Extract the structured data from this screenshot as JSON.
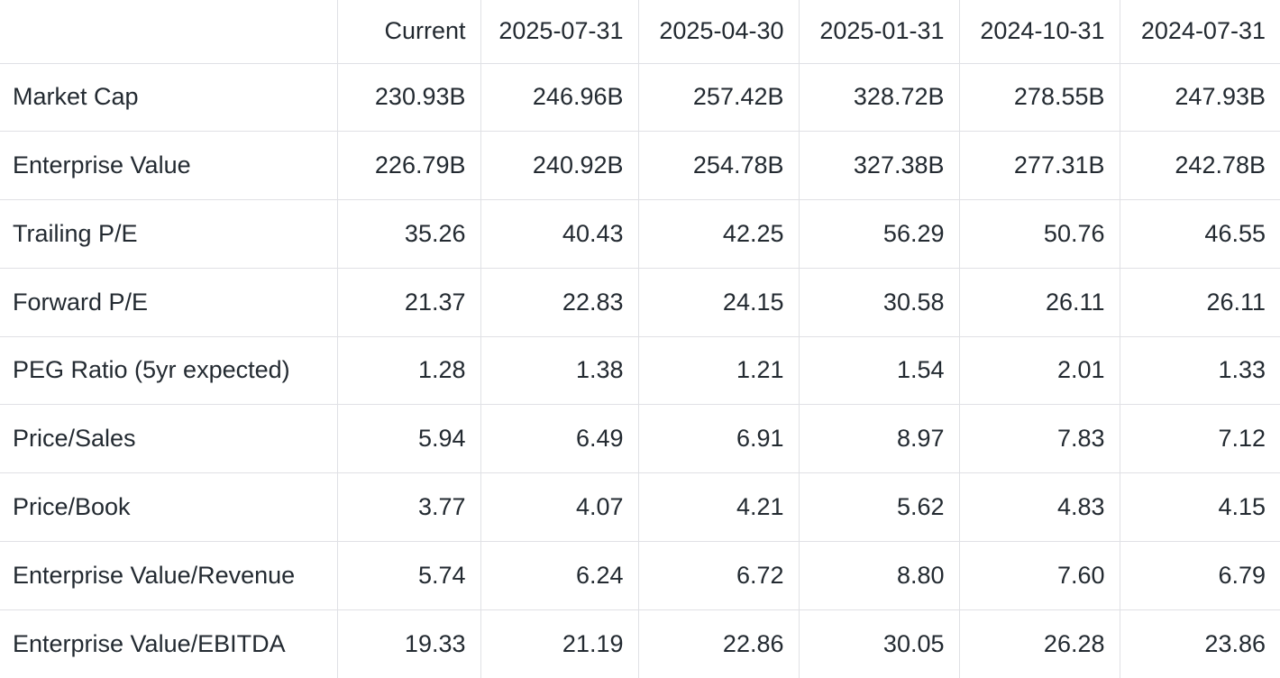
{
  "table": {
    "columns": [
      "",
      "Current",
      "2025-07-31",
      "2025-04-30",
      "2025-01-31",
      "2024-10-31",
      "2024-07-31"
    ],
    "rows": [
      {
        "label": "Market Cap",
        "values": [
          "230.93B",
          "246.96B",
          "257.42B",
          "328.72B",
          "278.55B",
          "247.93B"
        ]
      },
      {
        "label": "Enterprise Value",
        "values": [
          "226.79B",
          "240.92B",
          "254.78B",
          "327.38B",
          "277.31B",
          "242.78B"
        ]
      },
      {
        "label": "Trailing P/E",
        "values": [
          "35.26",
          "40.43",
          "42.25",
          "56.29",
          "50.76",
          "46.55"
        ]
      },
      {
        "label": "Forward P/E",
        "values": [
          "21.37",
          "22.83",
          "24.15",
          "30.58",
          "26.11",
          "26.11"
        ]
      },
      {
        "label": "PEG Ratio (5yr expected)",
        "values": [
          "1.28",
          "1.38",
          "1.21",
          "1.54",
          "2.01",
          "1.33"
        ]
      },
      {
        "label": "Price/Sales",
        "values": [
          "5.94",
          "6.49",
          "6.91",
          "8.97",
          "7.83",
          "7.12"
        ]
      },
      {
        "label": "Price/Book",
        "values": [
          "3.77",
          "4.07",
          "4.21",
          "5.62",
          "4.83",
          "4.15"
        ]
      },
      {
        "label": "Enterprise Value/Revenue",
        "values": [
          "5.74",
          "6.24",
          "6.72",
          "8.80",
          "7.60",
          "6.79"
        ]
      },
      {
        "label": "Enterprise Value/EBITDA",
        "values": [
          "19.33",
          "21.19",
          "22.86",
          "30.05",
          "26.28",
          "23.86"
        ]
      }
    ]
  },
  "colors": {
    "text": "#232a31",
    "divider": "#e0e1e5",
    "background": "#ffffff"
  }
}
